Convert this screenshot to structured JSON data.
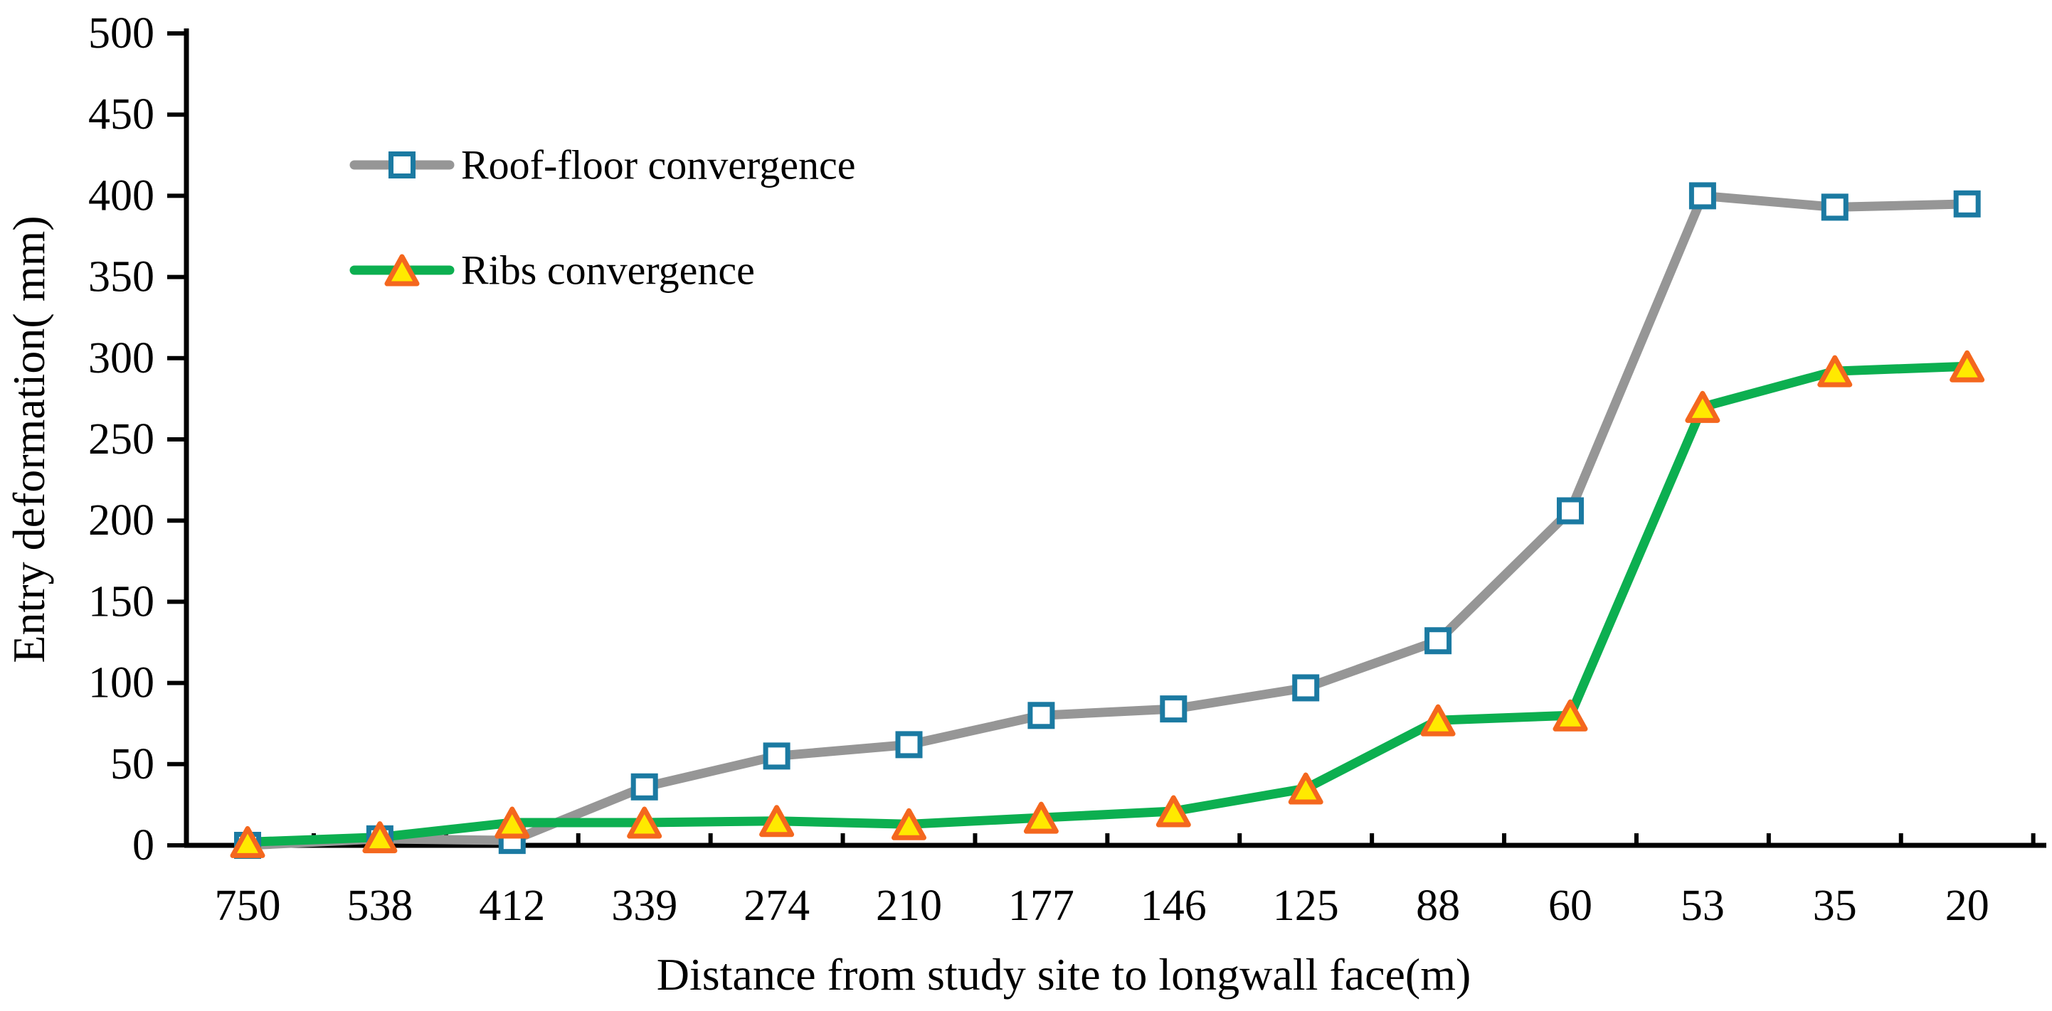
{
  "figure": {
    "description": "Line chart of entry deformation versus distance from study site to longwall face"
  },
  "colors": {
    "axis": "#000000",
    "roof_line": "#969696",
    "roof_marker_stroke": "#1b7aa2",
    "roof_marker_fill": "#ffffff",
    "ribs_line": "#0caf50",
    "ribs_marker_stroke": "#f4671e",
    "ribs_marker_fill": "#ffe900"
  },
  "chart_data": {
    "type": "line",
    "title": "",
    "xlabel": "Distance from study site to longwall face(m)",
    "ylabel": "Entry deformation( mm)",
    "categories": [
      "750",
      "538",
      "412",
      "339",
      "274",
      "210",
      "177",
      "146",
      "125",
      "88",
      "60",
      "53",
      "35",
      "20"
    ],
    "y_ticks": [
      0,
      50,
      100,
      150,
      200,
      250,
      300,
      350,
      400,
      450,
      500
    ],
    "ylim": [
      0,
      500
    ],
    "grid": false,
    "legend_position": "upper-left-inside",
    "series": [
      {
        "name": "Roof-floor convergence",
        "marker": "square",
        "line_color": "#969696",
        "marker_stroke": "#1b7aa2",
        "marker_fill": "#ffffff",
        "values": [
          0,
          4,
          3,
          36,
          55,
          62,
          80,
          84,
          97,
          126,
          206,
          400,
          393,
          395
        ]
      },
      {
        "name": "Ribs convergence",
        "marker": "triangle",
        "line_color": "#0caf50",
        "marker_stroke": "#f4671e",
        "marker_fill": "#ffe900",
        "values": [
          2,
          5,
          14,
          14,
          15,
          13,
          17,
          21,
          35,
          77,
          80,
          270,
          292,
          295
        ]
      }
    ]
  }
}
